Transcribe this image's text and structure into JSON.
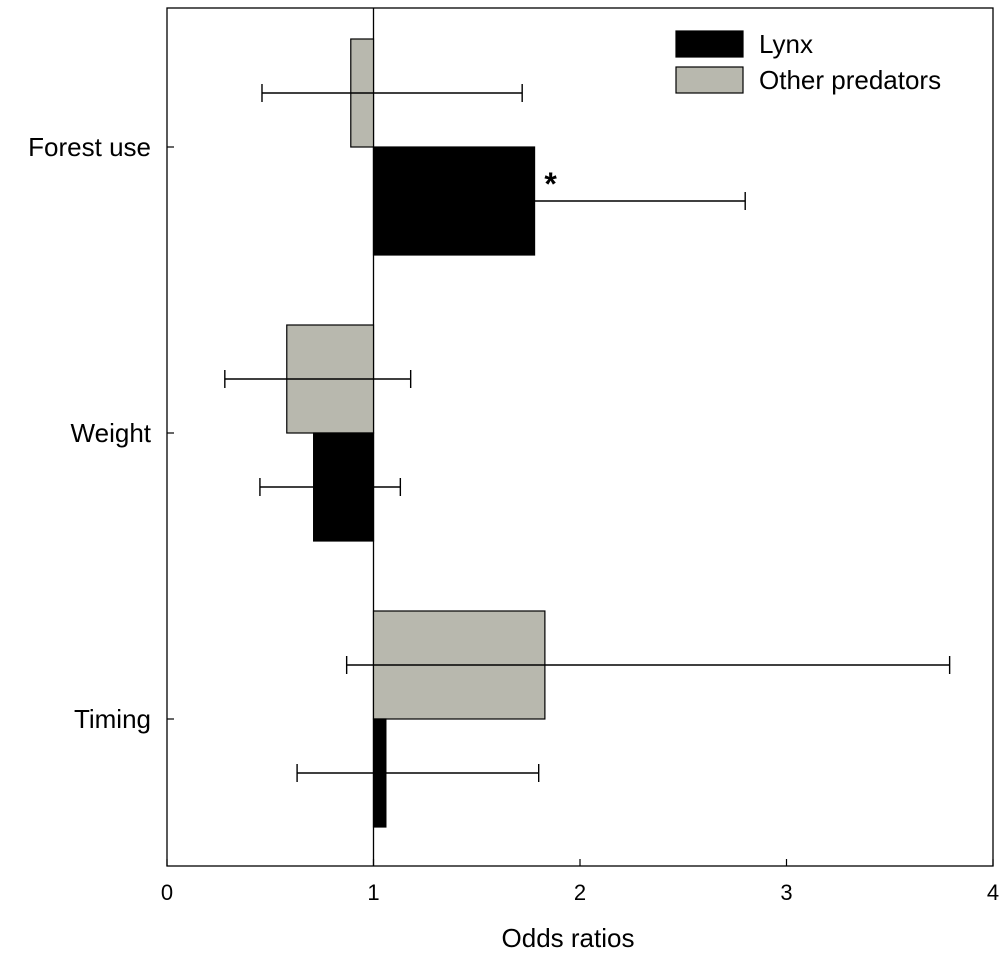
{
  "chart_data": {
    "type": "bar",
    "orientation": "horizontal",
    "baseline": 1,
    "categories": [
      "Forest use",
      "Weight",
      "Timing"
    ],
    "series": [
      {
        "name": "Lynx",
        "color": "#000000",
        "values": [
          1.78,
          0.71,
          1.06
        ],
        "ci_low": [
          1.78,
          0.45,
          0.63
        ],
        "ci_high": [
          2.8,
          1.13,
          1.8
        ]
      },
      {
        "name": "Other predators",
        "color": "#b8b8ae",
        "values": [
          0.89,
          0.58,
          1.83
        ],
        "ci_low": [
          0.46,
          0.28,
          0.87
        ],
        "ci_high": [
          1.72,
          1.18,
          3.79
        ]
      }
    ],
    "annotations": [
      {
        "category": "Forest use",
        "series": "Lynx",
        "text": "*"
      }
    ],
    "xlabel": "Odds ratios",
    "xlim": [
      0,
      4
    ],
    "xticks": [
      0,
      1,
      2,
      3,
      4
    ],
    "legend_position": "top-right",
    "reference_line": 1,
    "grid": false
  }
}
